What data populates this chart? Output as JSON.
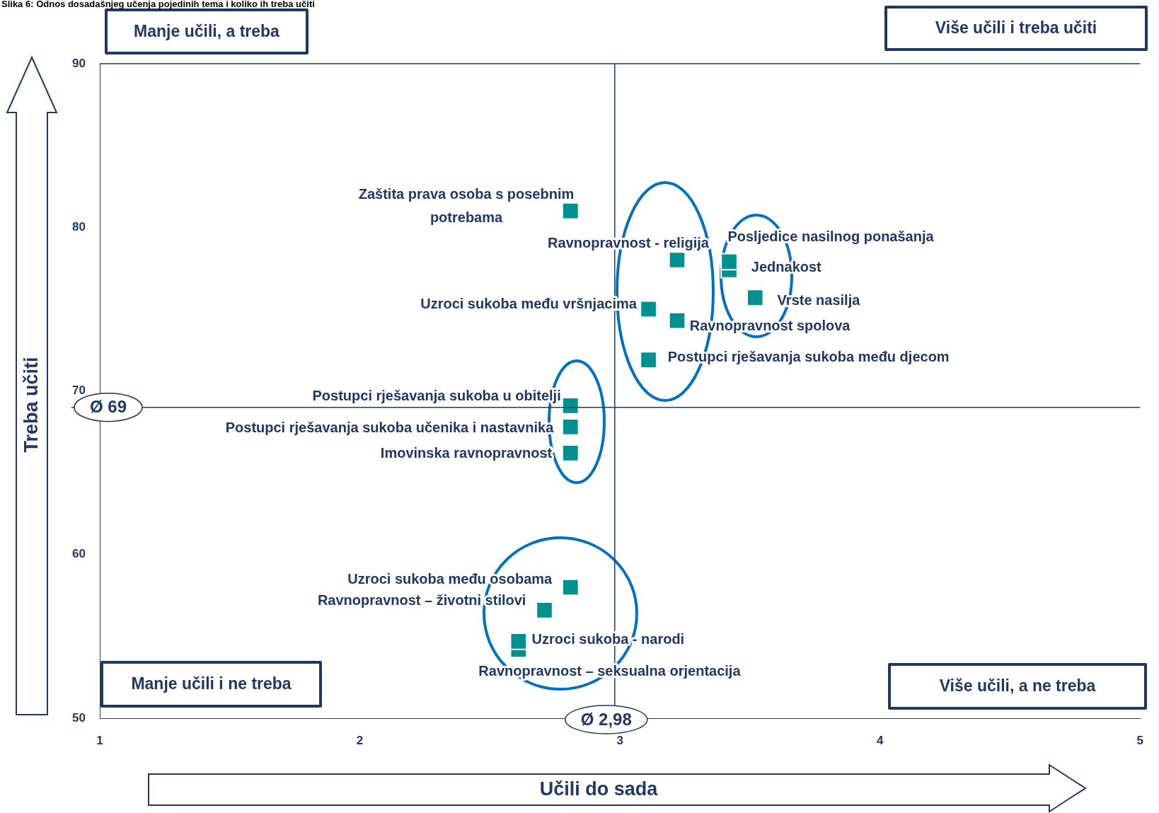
{
  "chart_data": {
    "type": "scatter",
    "title": "Slika 6: Odnos dosadašnjeg učenja pojedinih tema i koliko ih treba učiti",
    "xlabel": "Učili do sada",
    "ylabel": "Treba učiti",
    "xlim": [
      1,
      5
    ],
    "ylim": [
      50,
      90
    ],
    "xticks": [
      1,
      2,
      3,
      4,
      5
    ],
    "yticks": [
      50,
      60,
      70,
      80,
      90
    ],
    "grid": false,
    "marker": "square",
    "annotations": [
      "Manje učili, a treba",
      "Više učili i treba učiti",
      "Manje učili i ne treba",
      "Više učili, a ne treba"
    ],
    "ref_lines": [
      {
        "axis": "x",
        "value": 2.98,
        "label": "Ø 2,98",
        "color": "#1f3864"
      },
      {
        "axis": "y",
        "value": 69,
        "label": "Ø 69",
        "color": "#1f3864"
      }
    ],
    "series": [
      {
        "name": "Zaštita prava osoba s posebnim potrebama",
        "color": "#00918e",
        "x": [
          2.81
        ],
        "values": [
          81.0
        ]
      },
      {
        "name": "Ravnopravnost - religija",
        "color": "#00918e",
        "x": [
          3.22
        ],
        "values": [
          78.0
        ]
      },
      {
        "name": "Posljedice nasilnog ponašanja",
        "color": "#00918e",
        "x": [
          3.42
        ],
        "values": [
          77.9
        ]
      },
      {
        "name": "Jednakost",
        "color": "#00918e",
        "x": [
          3.42
        ],
        "values": [
          77.4
        ]
      },
      {
        "name": "Vrste nasilja",
        "color": "#00918e",
        "x": [
          3.52
        ],
        "values": [
          75.7
        ]
      },
      {
        "name": "Uzroci sukoba među vršnjacima",
        "color": "#00918e",
        "x": [
          3.11
        ],
        "values": [
          75.0
        ]
      },
      {
        "name": "Ravnopravnost spolova",
        "color": "#00918e",
        "x": [
          3.22
        ],
        "values": [
          74.3
        ]
      },
      {
        "name": "Postupci rješavanja sukoba među djecom",
        "color": "#00918e",
        "x": [
          3.11
        ],
        "values": [
          71.9
        ]
      },
      {
        "name": "Postupci rješavanja sukoba u obitelji",
        "color": "#00918e",
        "x": [
          2.81
        ],
        "values": [
          69.1
        ]
      },
      {
        "name": "Postupci rješavanja sukoba učenika i nastavnika",
        "color": "#00918e",
        "x": [
          2.81
        ],
        "values": [
          67.8
        ]
      },
      {
        "name": "Imovinska ravnopravnost",
        "color": "#00918e",
        "x": [
          2.81
        ],
        "values": [
          66.2
        ]
      },
      {
        "name": "Uzroci sukoba među osobama",
        "color": "#00918e",
        "x": [
          2.81
        ],
        "values": [
          58.0
        ]
      },
      {
        "name": "Ravnopravnost – životni stilovi",
        "color": "#00918e",
        "x": [
          2.71
        ],
        "values": [
          56.6
        ]
      },
      {
        "name": "Uzroci sukoba - narodi",
        "color": "#00918e",
        "x": [
          2.61
        ],
        "values": [
          54.7
        ]
      },
      {
        "name": "Ravnopravnost – seksualna orjentacija",
        "color": "#00918e",
        "x": [
          2.61
        ],
        "values": [
          54.2
        ]
      }
    ]
  }
}
